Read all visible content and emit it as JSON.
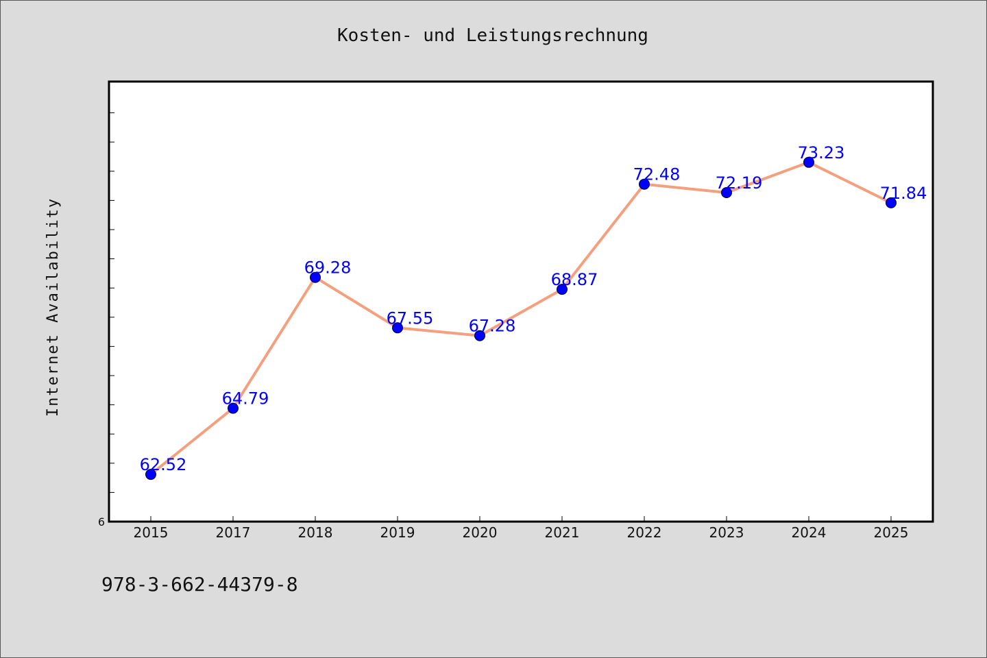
{
  "chart_data": {
    "type": "line",
    "title": "Kosten- und Leistungsrechnung",
    "xlabel": "",
    "ylabel": "Internet Availability",
    "categories": [
      "2015",
      "2017",
      "2018",
      "2019",
      "2020",
      "2021",
      "2022",
      "2023",
      "2024",
      "2025"
    ],
    "series": [
      {
        "values": [
          62.52,
          64.79,
          69.28,
          67.55,
          67.28,
          68.87,
          72.48,
          72.19,
          73.23,
          71.84
        ]
      }
    ],
    "data_labels": [
      "62.52",
      "64.79",
      "69.28",
      "67.55",
      "67.28",
      "68.87",
      "72.48",
      "72.19",
      "73.23",
      "71.84"
    ],
    "ytick_labels": [
      "6"
    ],
    "ylim": [
      60.9,
      76.0
    ],
    "grid": false,
    "legend": "none",
    "colors": {
      "line": "#f4a07f",
      "marker": "#0000ff",
      "data_label": "#0000ff",
      "plot_background": "#ffffff",
      "figure_background": "#dcdcdc"
    }
  },
  "footnote": "978-3-662-44379-8"
}
